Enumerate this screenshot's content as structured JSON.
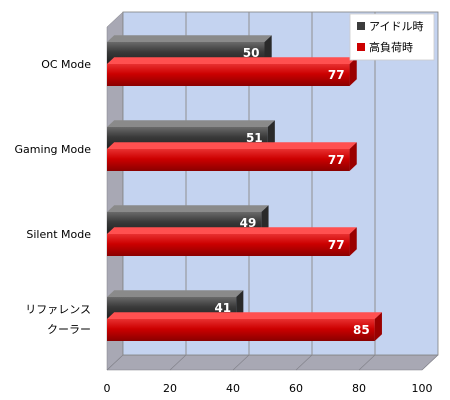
{
  "chart_data": {
    "type": "bar",
    "orientation": "horizontal",
    "categories": [
      "OC Mode",
      "Gaming Mode",
      "Silent Mode",
      "リファレンス\nクーラー"
    ],
    "series": [
      {
        "name": "アイドル時",
        "values": [
          50,
          51,
          49,
          41
        ],
        "color": "#3c3c3c"
      },
      {
        "name": "高負荷時",
        "values": [
          77,
          77,
          77,
          85
        ],
        "color": "#cc0000"
      }
    ],
    "xlim": [
      0,
      100
    ],
    "ticks": [
      0,
      20,
      40,
      60,
      80,
      100
    ],
    "grid": true,
    "legend_position": "top-right",
    "plot_background": "#c4d3f0"
  }
}
